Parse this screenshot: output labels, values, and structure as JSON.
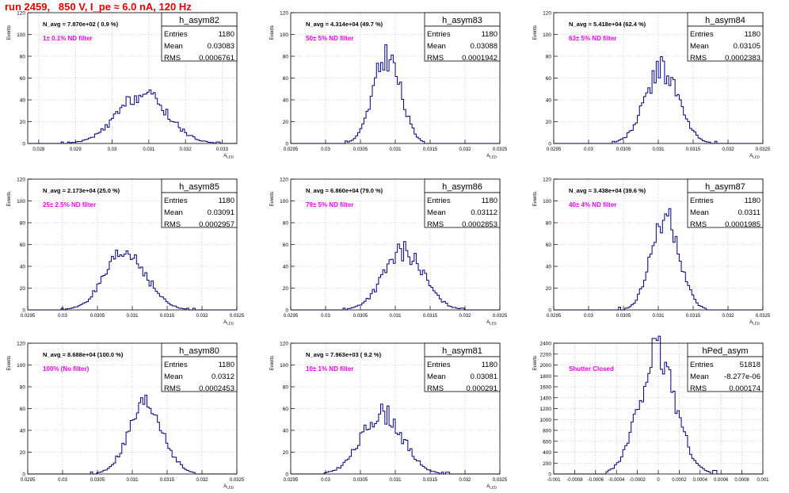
{
  "page": {
    "title": "run 2459,   850 V, I_pe ≈ 6.0 nA, 120 Hz"
  },
  "stat_labels": {
    "entries": "Entries",
    "mean": "Mean",
    "rms": "RMS"
  },
  "colors": {
    "histogram": "#000080",
    "annotation": "#ee00ee",
    "grid": "#aaaaaa",
    "frame": "#000000"
  },
  "chart_data": [
    {
      "type": "bar",
      "name": "h_asym82",
      "ylabel": "Events",
      "xlabel": "A_LED",
      "ylim": [
        0,
        120
      ],
      "xlim": [
        0.0277,
        0.0334
      ],
      "xticks": [
        0.028,
        0.029,
        0.03,
        0.031,
        0.032,
        0.033
      ],
      "xticklabels": [
        "0.028",
        "0.029",
        "0.03",
        "0.031",
        "0.032",
        "0.033"
      ],
      "yticks": [
        0,
        20,
        40,
        60,
        80,
        100,
        120
      ],
      "navg": "N_avg = 7.870e+02 ( 0.9 %)",
      "filter": "1± 0.1% ND filter",
      "entries": "1180",
      "mean": "0.03083",
      "rms": "0.0006761",
      "mean_value": 0.03083,
      "rms_value": 0.0006761,
      "peak": 45,
      "seed": 82
    },
    {
      "type": "bar",
      "name": "h_asym83",
      "ylabel": "Events",
      "xlabel": "A_LED",
      "ylim": [
        0,
        120
      ],
      "xlim": [
        0.0295,
        0.0325
      ],
      "xticks": [
        0.0295,
        0.03,
        0.0305,
        0.031,
        0.0315,
        0.032,
        0.0325
      ],
      "xticklabels": [
        "0.0295",
        "0.03",
        "0.0305",
        "0.031",
        "0.0315",
        "0.032",
        "0.0325"
      ],
      "yticks": [
        0,
        20,
        40,
        60,
        80,
        100,
        120
      ],
      "navg": "N_avg = 4.314e+04 (49.7 %)",
      "filter": "50± 5% ND filter",
      "entries": "1180",
      "mean": "0.03088",
      "rms": "0.0001942",
      "mean_value": 0.03088,
      "rms_value": 0.0001942,
      "peak": 80,
      "seed": 83
    },
    {
      "type": "bar",
      "name": "h_asym84",
      "ylabel": "Events",
      "xlabel": "A_LED",
      "ylim": [
        0,
        120
      ],
      "xlim": [
        0.0295,
        0.0325
      ],
      "xticks": [
        0.0295,
        0.03,
        0.0305,
        0.031,
        0.0315,
        0.032,
        0.0325
      ],
      "xticklabels": [
        "0.0295",
        "0.03",
        "0.0305",
        "0.031",
        "0.0315",
        "0.032",
        "0.0325"
      ],
      "yticks": [
        0,
        20,
        40,
        60,
        80,
        100,
        120
      ],
      "navg": "N_avg = 5.418e+04 (62.4 %)",
      "filter": "63± 5% ND filter",
      "entries": "1180",
      "mean": "0.03105",
      "rms": "0.0002383",
      "mean_value": 0.03105,
      "rms_value": 0.0002383,
      "peak": 68,
      "seed": 84
    },
    {
      "type": "bar",
      "name": "h_asym85",
      "ylabel": "Events",
      "xlabel": "A_LED",
      "ylim": [
        0,
        120
      ],
      "xlim": [
        0.0295,
        0.0325
      ],
      "xticks": [
        0.0295,
        0.03,
        0.0305,
        0.031,
        0.0315,
        0.032,
        0.0325
      ],
      "xticklabels": [
        "0.0295",
        "0.03",
        "0.0305",
        "0.031",
        "0.0315",
        "0.032",
        "0.0325"
      ],
      "yticks": [
        0,
        20,
        40,
        60,
        80,
        100,
        120
      ],
      "navg": "N_avg = 2.173e+04 (25.0 %)",
      "filter": "25± 2.5% ND filter",
      "entries": "1180",
      "mean": "0.03091",
      "rms": "0.0002957",
      "mean_value": 0.03091,
      "rms_value": 0.0002957,
      "peak": 52,
      "seed": 85
    },
    {
      "type": "bar",
      "name": "h_asym86",
      "ylabel": "Events",
      "xlabel": "A_LED",
      "ylim": [
        0,
        120
      ],
      "xlim": [
        0.0295,
        0.0325
      ],
      "xticks": [
        0.0295,
        0.03,
        0.0305,
        0.031,
        0.0315,
        0.032,
        0.0325
      ],
      "xticklabels": [
        "0.0295",
        "0.03",
        "0.0305",
        "0.031",
        "0.0315",
        "0.032",
        "0.0325"
      ],
      "yticks": [
        0,
        20,
        40,
        60,
        80,
        100,
        120
      ],
      "navg": "N_avg = 6.860e+04 (79.0 %)",
      "filter": "79± 5% ND filter",
      "entries": "1180",
      "mean": "0.03112",
      "rms": "0.0002853",
      "mean_value": 0.03112,
      "rms_value": 0.0002853,
      "peak": 54,
      "seed": 86
    },
    {
      "type": "bar",
      "name": "h_asym87",
      "ylabel": "Events",
      "xlabel": "A_LED",
      "ylim": [
        0,
        120
      ],
      "xlim": [
        0.0295,
        0.0325
      ],
      "xticks": [
        0.0295,
        0.03,
        0.0305,
        0.031,
        0.0315,
        0.032,
        0.0325
      ],
      "xticklabels": [
        "0.0295",
        "0.03",
        "0.0305",
        "0.031",
        "0.0315",
        "0.032",
        "0.0325"
      ],
      "yticks": [
        0,
        20,
        40,
        60,
        80,
        100,
        120
      ],
      "navg": "N_avg = 3.438e+04 (39.6 %)",
      "filter": "40± 4% ND filter",
      "entries": "1180",
      "mean": "0.0311",
      "rms": "0.0001985",
      "mean_value": 0.0311,
      "rms_value": 0.0001985,
      "peak": 86,
      "seed": 87
    },
    {
      "type": "bar",
      "name": "h_asym80",
      "ylabel": "Events",
      "xlabel": "A_LED",
      "ylim": [
        0,
        120
      ],
      "xlim": [
        0.0295,
        0.0325
      ],
      "xticks": [
        0.0295,
        0.03,
        0.0305,
        0.031,
        0.0315,
        0.032,
        0.0325
      ],
      "xticklabels": [
        "0.0295",
        "0.03",
        "0.0305",
        "0.031",
        "0.0315",
        "0.032",
        "0.0325"
      ],
      "yticks": [
        0,
        20,
        40,
        60,
        80,
        100,
        120
      ],
      "navg": "N_avg = 8.688e+04 (100.0 %)",
      "filter": "100% (No filter)",
      "entries": "1180",
      "mean": "0.0312",
      "rms": "0.0002453",
      "mean_value": 0.0312,
      "rms_value": 0.0002453,
      "peak": 63,
      "seed": 80
    },
    {
      "type": "bar",
      "name": "h_asym81",
      "ylabel": "Events",
      "xlabel": "A_LED",
      "ylim": [
        0,
        120
      ],
      "xlim": [
        0.0295,
        0.0325
      ],
      "xticks": [
        0.0295,
        0.03,
        0.0305,
        0.031,
        0.0315,
        0.032,
        0.0325
      ],
      "xticklabels": [
        "0.0295",
        "0.03",
        "0.0305",
        "0.031",
        "0.0315",
        "0.032",
        "0.0325"
      ],
      "yticks": [
        0,
        20,
        40,
        60,
        80,
        100,
        120
      ],
      "navg": "N_avg = 7.963e+03 ( 9.2 %)",
      "filter": "10± 1% ND filter",
      "entries": "1180",
      "mean": "0.03081",
      "rms": "0.000291",
      "mean_value": 0.03081,
      "rms_value": 0.000291,
      "peak": 56,
      "seed": 81
    },
    {
      "type": "bar",
      "name": "hPed_asym",
      "ylabel": "Events",
      "xlabel": "",
      "ylim": [
        0,
        2400
      ],
      "xlim": [
        -0.001,
        0.001
      ],
      "xticks": [
        -0.001,
        -0.0008,
        -0.0006,
        -0.0004,
        -0.0002,
        0,
        0.0002,
        0.0004,
        0.0006,
        0.0008,
        0.001
      ],
      "xticklabels": [
        "-0.001",
        "-0.0008",
        "-0.0006",
        "-0.0004",
        "-0.0002",
        "0",
        "0.0002",
        "0.0004",
        "0.0006",
        "0.0008",
        "0.001"
      ],
      "yticks": [
        0,
        200,
        400,
        600,
        800,
        1000,
        1200,
        1400,
        1600,
        1800,
        2000,
        2200,
        2400
      ],
      "navg": "",
      "filter": "Shutter Closed",
      "entries": "51818",
      "mean": "-8.277e-06",
      "rms": "0.000174",
      "mean_value": -8.277e-06,
      "rms_value": 0.000174,
      "peak": 2200,
      "seed": 99
    }
  ]
}
